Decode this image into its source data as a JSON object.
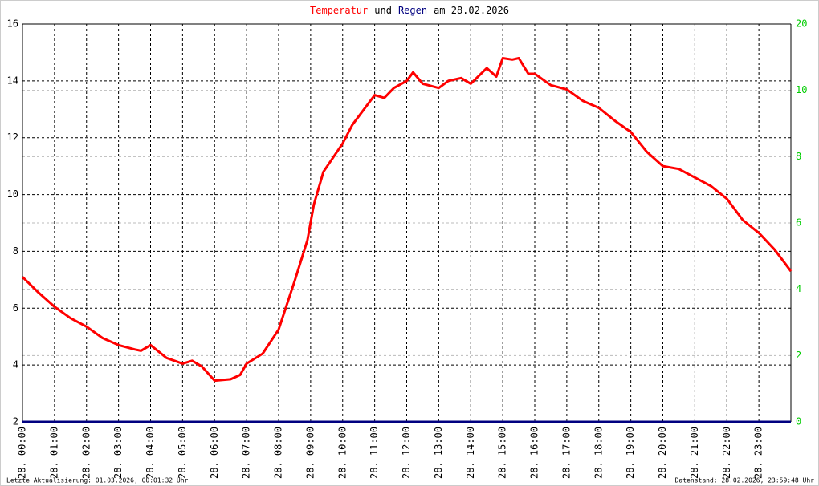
{
  "chart_data": {
    "type": "line",
    "title_parts": [
      {
        "text": "Temperatur",
        "color": "#ff0000"
      },
      {
        "text": "und",
        "color": "#000000"
      },
      {
        "text": "Regen",
        "color": "#000080"
      },
      {
        "text": "am 28.02.2026",
        "color": "#000000"
      }
    ],
    "footer_left": "Letzte Aktualisierung: 01.03.2026, 00:01:32 Uhr",
    "footer_right": "Datenstand: 28.02.2026, 23:59:48 Uhr",
    "xlim": [
      0,
      24
    ],
    "xticks": [
      {
        "value": 0,
        "label": "28. 00:00"
      },
      {
        "value": 1,
        "label": "28. 01:00"
      },
      {
        "value": 2,
        "label": "28. 02:00"
      },
      {
        "value": 3,
        "label": "28. 03:00"
      },
      {
        "value": 4,
        "label": "28. 04:00"
      },
      {
        "value": 5,
        "label": "28. 05:00"
      },
      {
        "value": 6,
        "label": "28. 06:00"
      },
      {
        "value": 7,
        "label": "28. 07:00"
      },
      {
        "value": 8,
        "label": "28. 08:00"
      },
      {
        "value": 9,
        "label": "28. 09:00"
      },
      {
        "value": 10,
        "label": "28. 10:00"
      },
      {
        "value": 11,
        "label": "28. 11:00"
      },
      {
        "value": 12,
        "label": "28. 12:00"
      },
      {
        "value": 13,
        "label": "28. 13:00"
      },
      {
        "value": 14,
        "label": "28. 14:00"
      },
      {
        "value": 15,
        "label": "28. 15:00"
      },
      {
        "value": 16,
        "label": "28. 16:00"
      },
      {
        "value": 17,
        "label": "28. 17:00"
      },
      {
        "value": 18,
        "label": "28. 18:00"
      },
      {
        "value": 19,
        "label": "28. 19:00"
      },
      {
        "value": 20,
        "label": "28. 20:00"
      },
      {
        "value": 21,
        "label": "28. 21:00"
      },
      {
        "value": 22,
        "label": "28. 22:00"
      },
      {
        "value": 23,
        "label": "28. 23:00"
      }
    ],
    "ylim": [
      2,
      16
    ],
    "yticks": [
      2,
      4,
      6,
      8,
      10,
      12,
      14,
      16
    ],
    "y2lim": [
      0,
      12
    ],
    "y2ticks": [
      0,
      2,
      4,
      6,
      8,
      10
    ],
    "y2_top_label": "20",
    "grid": true,
    "series": [
      {
        "name": "Temperatur",
        "color": "#ff0000",
        "x": [
          0,
          0.5,
          1,
          1.5,
          2,
          2.5,
          3,
          3.5,
          3.7,
          4,
          4.5,
          5,
          5.3,
          5.6,
          6,
          6.5,
          6.8,
          7,
          7.5,
          8,
          8.5,
          8.9,
          9.1,
          9.4,
          10,
          10.3,
          11,
          11.3,
          11.6,
          12,
          12.2,
          12.5,
          13,
          13.3,
          13.7,
          14,
          14.5,
          14.8,
          15,
          15.3,
          15.5,
          15.8,
          16,
          16.5,
          17,
          17.5,
          18,
          18.5,
          19,
          19.5,
          20,
          20.5,
          21,
          21.5,
          22,
          22.5,
          23,
          23.5,
          24
        ],
        "values": [
          7.1,
          6.55,
          6.05,
          5.65,
          5.35,
          4.95,
          4.7,
          4.55,
          4.5,
          4.7,
          4.25,
          4.05,
          4.15,
          3.95,
          3.45,
          3.5,
          3.65,
          4.05,
          4.4,
          5.25,
          6.95,
          8.4,
          9.65,
          10.8,
          11.8,
          12.45,
          13.5,
          13.4,
          13.75,
          14.0,
          14.3,
          13.9,
          13.75,
          14.0,
          14.1,
          13.9,
          14.45,
          14.15,
          14.8,
          14.75,
          14.8,
          14.25,
          14.25,
          13.85,
          13.7,
          13.3,
          13.05,
          12.6,
          12.2,
          11.5,
          11.0,
          10.9,
          10.6,
          10.3,
          9.85,
          9.1,
          8.65,
          8.05,
          7.3
        ]
      },
      {
        "name": "Regen",
        "color": "#000080",
        "axis": "y2",
        "x": [
          0,
          24
        ],
        "values": [
          0,
          0
        ]
      }
    ]
  }
}
